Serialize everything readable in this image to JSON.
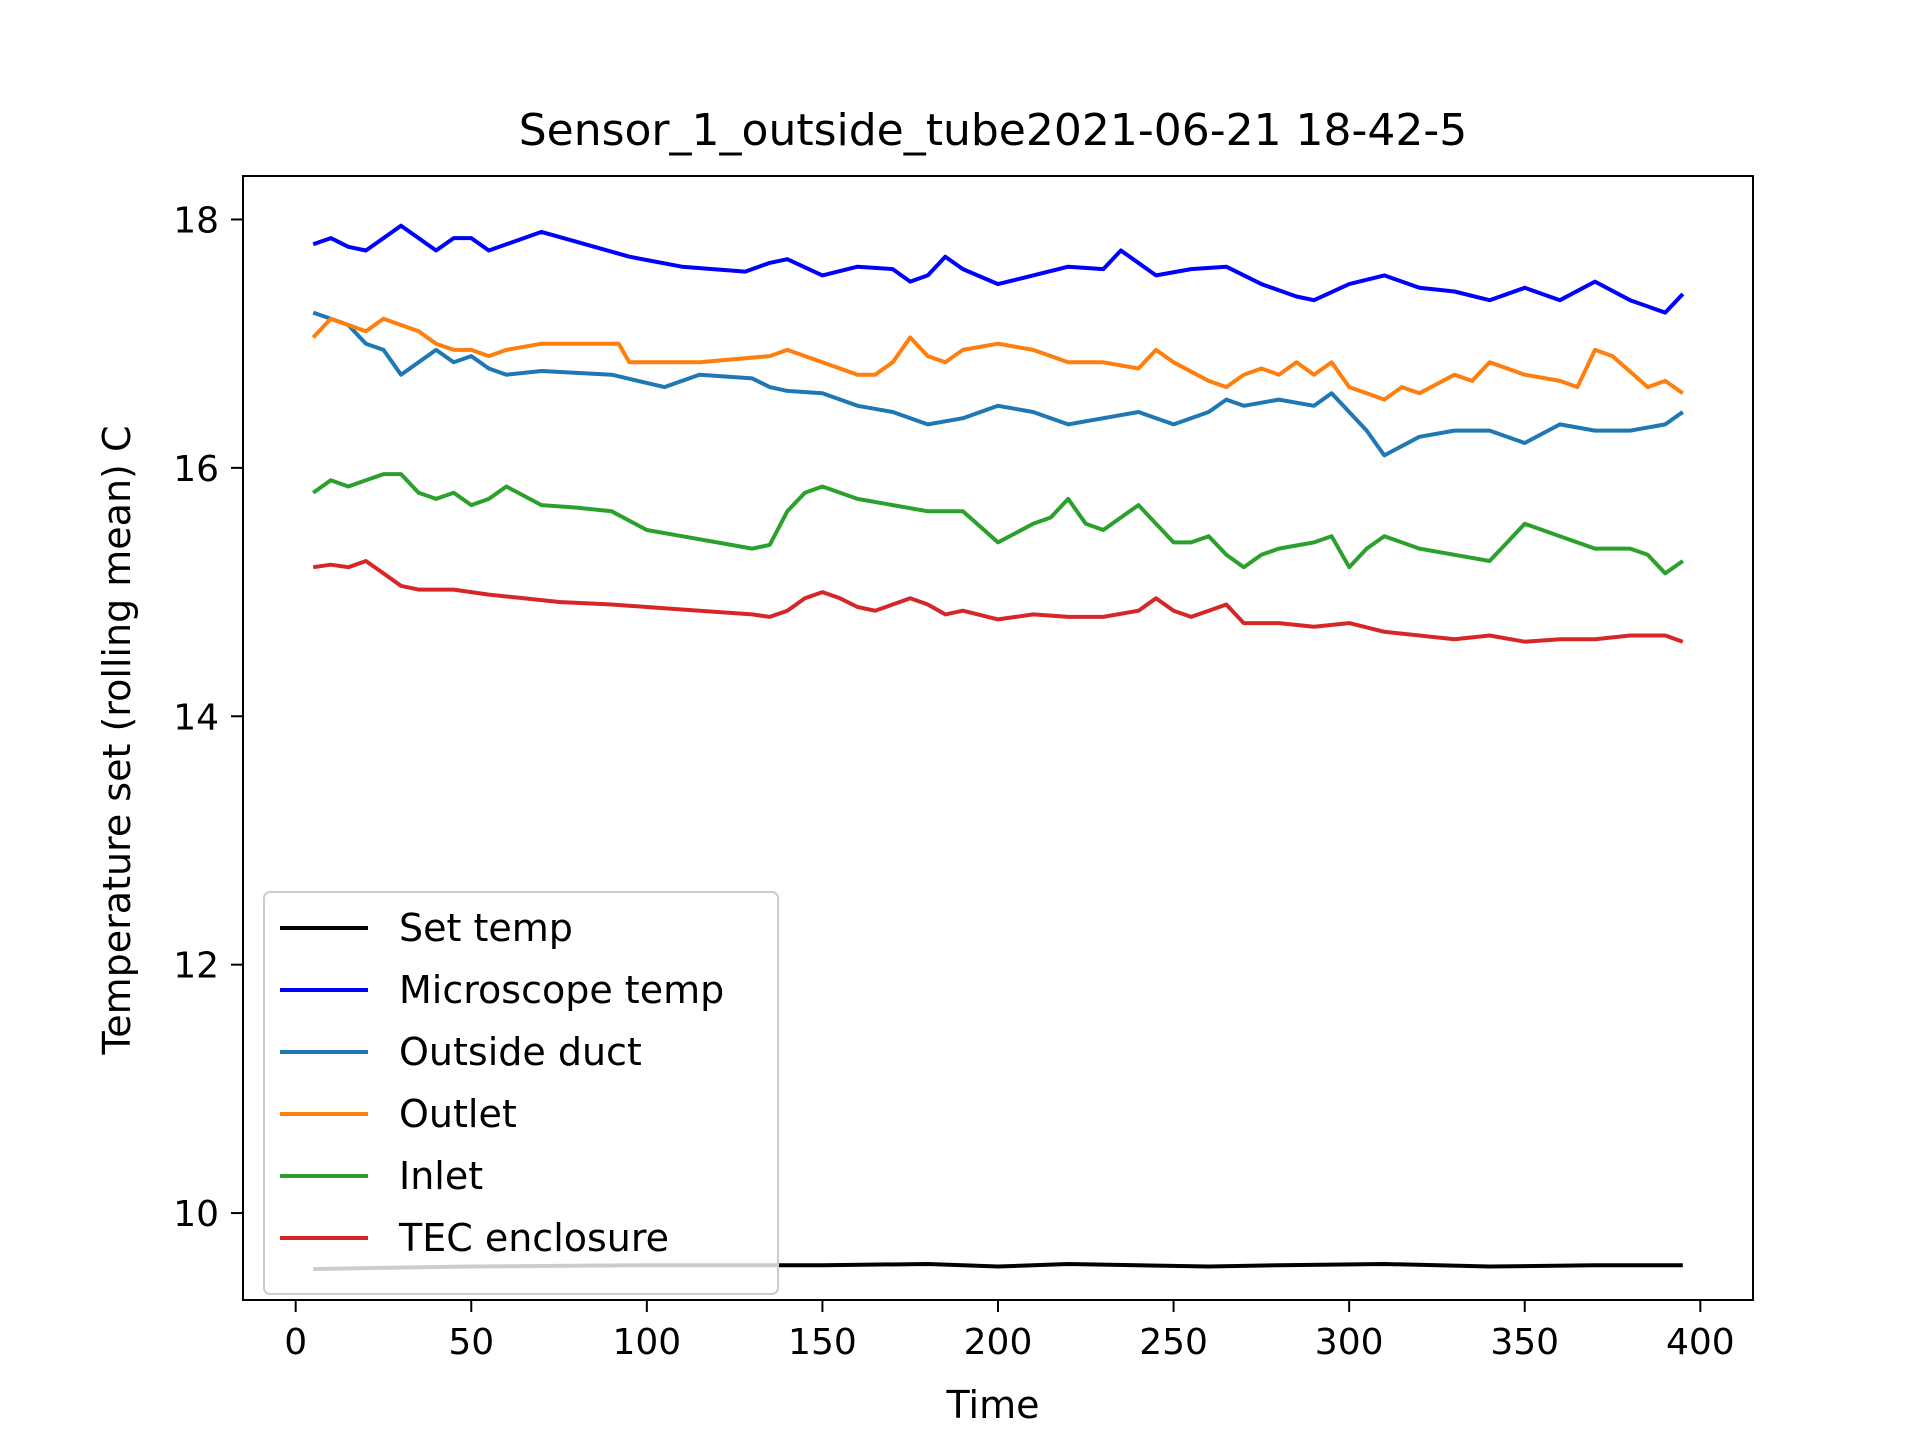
{
  "chart_data": {
    "type": "line",
    "title": "Sensor_1_outside_tube2021-06-21 18-42-5",
    "xlabel": "Time",
    "ylabel": "Temperature set (rolling mean) C",
    "xlim": [
      -15,
      415
    ],
    "ylim": [
      9.3,
      18.35
    ],
    "xticks": [
      0,
      50,
      100,
      150,
      200,
      250,
      300,
      350,
      400
    ],
    "yticks": [
      10,
      12,
      14,
      16,
      18
    ],
    "grid": false,
    "legend_position": "lower-left",
    "series": [
      {
        "name": "Set temp",
        "color": "#000000",
        "x": [
          5,
          50,
          100,
          150,
          180,
          200,
          220,
          260,
          280,
          310,
          340,
          370,
          395
        ],
        "y": [
          9.55,
          9.57,
          9.58,
          9.58,
          9.59,
          9.57,
          9.59,
          9.57,
          9.58,
          9.59,
          9.57,
          9.58,
          9.58
        ]
      },
      {
        "name": "Microscope temp",
        "color": "#0000ff",
        "x": [
          5,
          10,
          15,
          20,
          25,
          30,
          35,
          40,
          45,
          50,
          55,
          60,
          65,
          70,
          80,
          95,
          110,
          128,
          135,
          140,
          150,
          160,
          170,
          175,
          180,
          185,
          190,
          200,
          210,
          220,
          230,
          235,
          245,
          255,
          265,
          275,
          285,
          290,
          300,
          310,
          320,
          330,
          340,
          350,
          360,
          370,
          380,
          390,
          395
        ],
        "y": [
          17.8,
          17.85,
          17.78,
          17.75,
          17.85,
          17.95,
          17.85,
          17.75,
          17.85,
          17.85,
          17.75,
          17.8,
          17.85,
          17.9,
          17.82,
          17.7,
          17.62,
          17.58,
          17.65,
          17.68,
          17.55,
          17.62,
          17.6,
          17.5,
          17.55,
          17.7,
          17.6,
          17.48,
          17.55,
          17.62,
          17.6,
          17.75,
          17.55,
          17.6,
          17.62,
          17.48,
          17.38,
          17.35,
          17.48,
          17.55,
          17.45,
          17.42,
          17.35,
          17.45,
          17.35,
          17.5,
          17.35,
          17.25,
          17.4
        ]
      },
      {
        "name": "Outside duct",
        "color": "#1f77b4",
        "x": [
          5,
          10,
          15,
          20,
          25,
          30,
          35,
          40,
          45,
          50,
          55,
          60,
          70,
          90,
          105,
          115,
          130,
          135,
          140,
          150,
          160,
          170,
          180,
          190,
          200,
          210,
          220,
          230,
          240,
          250,
          260,
          265,
          270,
          280,
          290,
          295,
          300,
          305,
          310,
          320,
          330,
          340,
          350,
          360,
          370,
          380,
          390,
          395
        ],
        "y": [
          17.25,
          17.2,
          17.15,
          17.0,
          16.95,
          16.75,
          16.85,
          16.95,
          16.85,
          16.9,
          16.8,
          16.75,
          16.78,
          16.75,
          16.65,
          16.75,
          16.72,
          16.65,
          16.62,
          16.6,
          16.5,
          16.45,
          16.35,
          16.4,
          16.5,
          16.45,
          16.35,
          16.4,
          16.45,
          16.35,
          16.45,
          16.55,
          16.5,
          16.55,
          16.5,
          16.6,
          16.45,
          16.3,
          16.1,
          16.25,
          16.3,
          16.3,
          16.2,
          16.35,
          16.3,
          16.3,
          16.35,
          16.45
        ]
      },
      {
        "name": "Outlet",
        "color": "#ff7f0e",
        "x": [
          5,
          10,
          15,
          20,
          25,
          30,
          35,
          40,
          45,
          50,
          55,
          60,
          70,
          80,
          92,
          95,
          115,
          135,
          140,
          150,
          160,
          165,
          170,
          175,
          180,
          185,
          190,
          200,
          210,
          220,
          230,
          240,
          245,
          250,
          260,
          265,
          270,
          275,
          280,
          285,
          290,
          295,
          300,
          305,
          310,
          315,
          320,
          330,
          335,
          340,
          350,
          360,
          365,
          370,
          375,
          385,
          390,
          395
        ],
        "y": [
          17.05,
          17.2,
          17.15,
          17.1,
          17.2,
          17.15,
          17.1,
          17.0,
          16.95,
          16.95,
          16.9,
          16.95,
          17.0,
          17.0,
          17.0,
          16.85,
          16.85,
          16.9,
          16.95,
          16.85,
          16.75,
          16.75,
          16.85,
          17.05,
          16.9,
          16.85,
          16.95,
          17.0,
          16.95,
          16.85,
          16.85,
          16.8,
          16.95,
          16.85,
          16.7,
          16.65,
          16.75,
          16.8,
          16.75,
          16.85,
          16.75,
          16.85,
          16.65,
          16.6,
          16.55,
          16.65,
          16.6,
          16.75,
          16.7,
          16.85,
          16.75,
          16.7,
          16.65,
          16.95,
          16.9,
          16.65,
          16.7,
          16.6
        ]
      },
      {
        "name": "Inlet",
        "color": "#2ca02c",
        "x": [
          5,
          10,
          15,
          20,
          25,
          30,
          35,
          40,
          45,
          50,
          55,
          60,
          70,
          80,
          90,
          100,
          110,
          120,
          130,
          135,
          140,
          145,
          150,
          160,
          170,
          180,
          190,
          200,
          210,
          215,
          220,
          225,
          230,
          235,
          240,
          245,
          250,
          255,
          260,
          265,
          270,
          275,
          280,
          290,
          295,
          300,
          305,
          310,
          320,
          330,
          340,
          345,
          350,
          360,
          370,
          380,
          385,
          390,
          395
        ],
        "y": [
          15.8,
          15.9,
          15.85,
          15.9,
          15.95,
          15.95,
          15.8,
          15.75,
          15.8,
          15.7,
          15.75,
          15.85,
          15.7,
          15.68,
          15.65,
          15.5,
          15.45,
          15.4,
          15.35,
          15.38,
          15.65,
          15.8,
          15.85,
          15.75,
          15.7,
          15.65,
          15.65,
          15.4,
          15.55,
          15.6,
          15.75,
          15.55,
          15.5,
          15.6,
          15.7,
          15.55,
          15.4,
          15.4,
          15.45,
          15.3,
          15.2,
          15.3,
          15.35,
          15.4,
          15.45,
          15.2,
          15.35,
          15.45,
          15.35,
          15.3,
          15.25,
          15.4,
          15.55,
          15.45,
          15.35,
          15.35,
          15.3,
          15.15,
          15.25
        ]
      },
      {
        "name": "TEC enclosure",
        "color": "#d62728",
        "x": [
          5,
          10,
          15,
          20,
          25,
          30,
          35,
          45,
          55,
          65,
          75,
          90,
          100,
          115,
          130,
          135,
          140,
          145,
          150,
          155,
          160,
          165,
          170,
          175,
          180,
          185,
          190,
          200,
          210,
          220,
          230,
          240,
          245,
          250,
          255,
          260,
          265,
          270,
          280,
          290,
          300,
          310,
          320,
          330,
          340,
          350,
          360,
          370,
          380,
          390,
          395
        ],
        "y": [
          15.2,
          15.22,
          15.2,
          15.25,
          15.15,
          15.05,
          15.02,
          15.02,
          14.98,
          14.95,
          14.92,
          14.9,
          14.88,
          14.85,
          14.82,
          14.8,
          14.85,
          14.95,
          15.0,
          14.95,
          14.88,
          14.85,
          14.9,
          14.95,
          14.9,
          14.82,
          14.85,
          14.78,
          14.82,
          14.8,
          14.8,
          14.85,
          14.95,
          14.85,
          14.8,
          14.85,
          14.9,
          14.75,
          14.75,
          14.72,
          14.75,
          14.68,
          14.65,
          14.62,
          14.65,
          14.6,
          14.62,
          14.62,
          14.65,
          14.65,
          14.6
        ]
      }
    ]
  }
}
